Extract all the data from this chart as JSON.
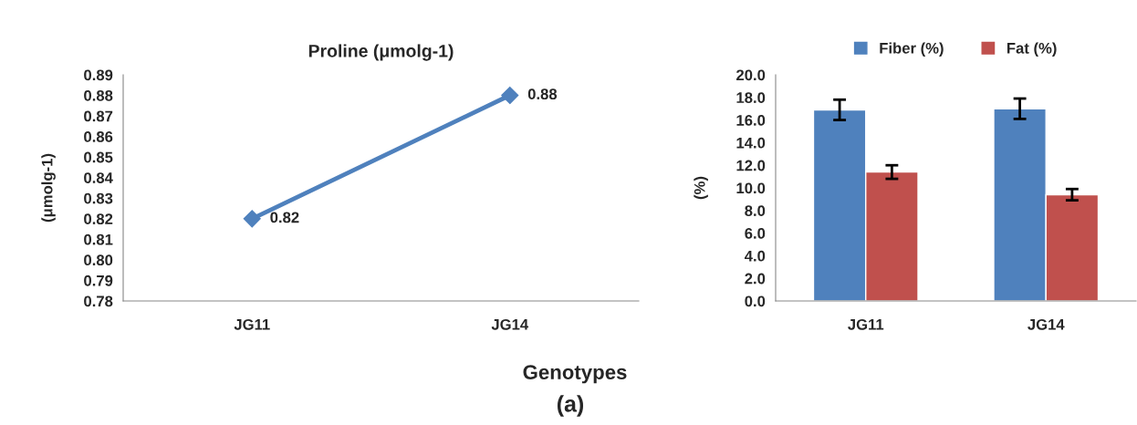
{
  "chart_data": [
    {
      "type": "line",
      "title": "Proline (μmolg-1)",
      "ylabel": "(μmolg-1)",
      "categories": [
        "JG11",
        "JG14"
      ],
      "series": [
        {
          "color": "#4f81bd",
          "values": [
            0.82,
            0.88
          ]
        }
      ],
      "marker": "diamond",
      "data_labels": true,
      "grid": false,
      "legend": false,
      "ylim": [
        0.78,
        0.89
      ],
      "yticks": [
        {
          "value": 0.78,
          "label": "0.78"
        },
        {
          "value": 0.79,
          "label": "0.79"
        },
        {
          "value": 0.8,
          "label": "0.80"
        },
        {
          "value": 0.81,
          "label": "0.81"
        },
        {
          "value": 0.82,
          "label": "0.82"
        },
        {
          "value": 0.83,
          "label": "0.83"
        },
        {
          "value": 0.84,
          "label": "0.84"
        },
        {
          "value": 0.85,
          "label": "0.85"
        },
        {
          "value": 0.86,
          "label": "0.86"
        },
        {
          "value": 0.87,
          "label": "0.87"
        },
        {
          "value": 0.88,
          "label": "0.88"
        },
        {
          "value": 0.89,
          "label": "0.89"
        }
      ],
      "annotations": [
        "Genotypes",
        "(a)"
      ]
    },
    {
      "type": "bar",
      "ylabel": "(%)",
      "categories": [
        "JG11",
        "JG14"
      ],
      "series": [
        {
          "name": "Fiber (%)",
          "color": "#4f81bd",
          "values": [
            16.9,
            17.0
          ],
          "errors": [
            0.9,
            0.9
          ]
        },
        {
          "name": "Fat (%)",
          "color": "#c0504d",
          "values": [
            11.4,
            9.4
          ],
          "errors": [
            0.6,
            0.5
          ]
        }
      ],
      "legend": "top",
      "grid": false,
      "ylim": [
        0,
        20
      ],
      "yticks": [
        {
          "value": 0,
          "label": "0.0"
        },
        {
          "value": 2,
          "label": "2.0"
        },
        {
          "value": 4,
          "label": "4.0"
        },
        {
          "value": 6,
          "label": "6.0"
        },
        {
          "value": 8,
          "label": "8.0"
        },
        {
          "value": 10,
          "label": "10.0"
        },
        {
          "value": 12,
          "label": "12.0"
        },
        {
          "value": 14,
          "label": "14.0"
        },
        {
          "value": 16,
          "label": "16.0"
        },
        {
          "value": 18,
          "label": "18.0"
        },
        {
          "value": 20,
          "label": "20.0"
        }
      ]
    }
  ]
}
